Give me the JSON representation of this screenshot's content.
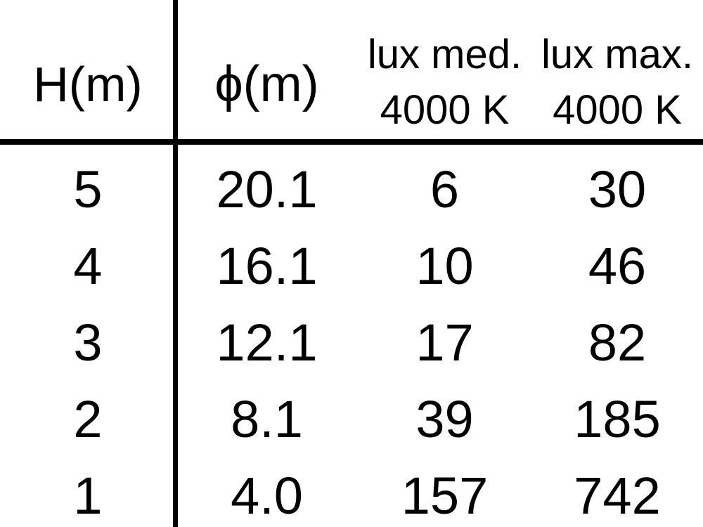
{
  "colors": {
    "background": "#ffffff",
    "text": "#000000",
    "rule": "#000000"
  },
  "chart_data": {
    "type": "table",
    "columns": [
      {
        "name": "H(m)"
      },
      {
        "name": "ϕ(m)"
      },
      {
        "name": "lux med.",
        "subtitle": "4000 K"
      },
      {
        "name": "lux max.",
        "subtitle": "4000 K"
      }
    ],
    "rows": [
      [
        "5",
        "20.1",
        "6",
        "30"
      ],
      [
        "4",
        "16.1",
        "10",
        "46"
      ],
      [
        "3",
        "12.1",
        "17",
        "82"
      ],
      [
        "2",
        "8.1",
        "39",
        "185"
      ],
      [
        "1",
        "4.0",
        "157",
        "742"
      ]
    ]
  }
}
